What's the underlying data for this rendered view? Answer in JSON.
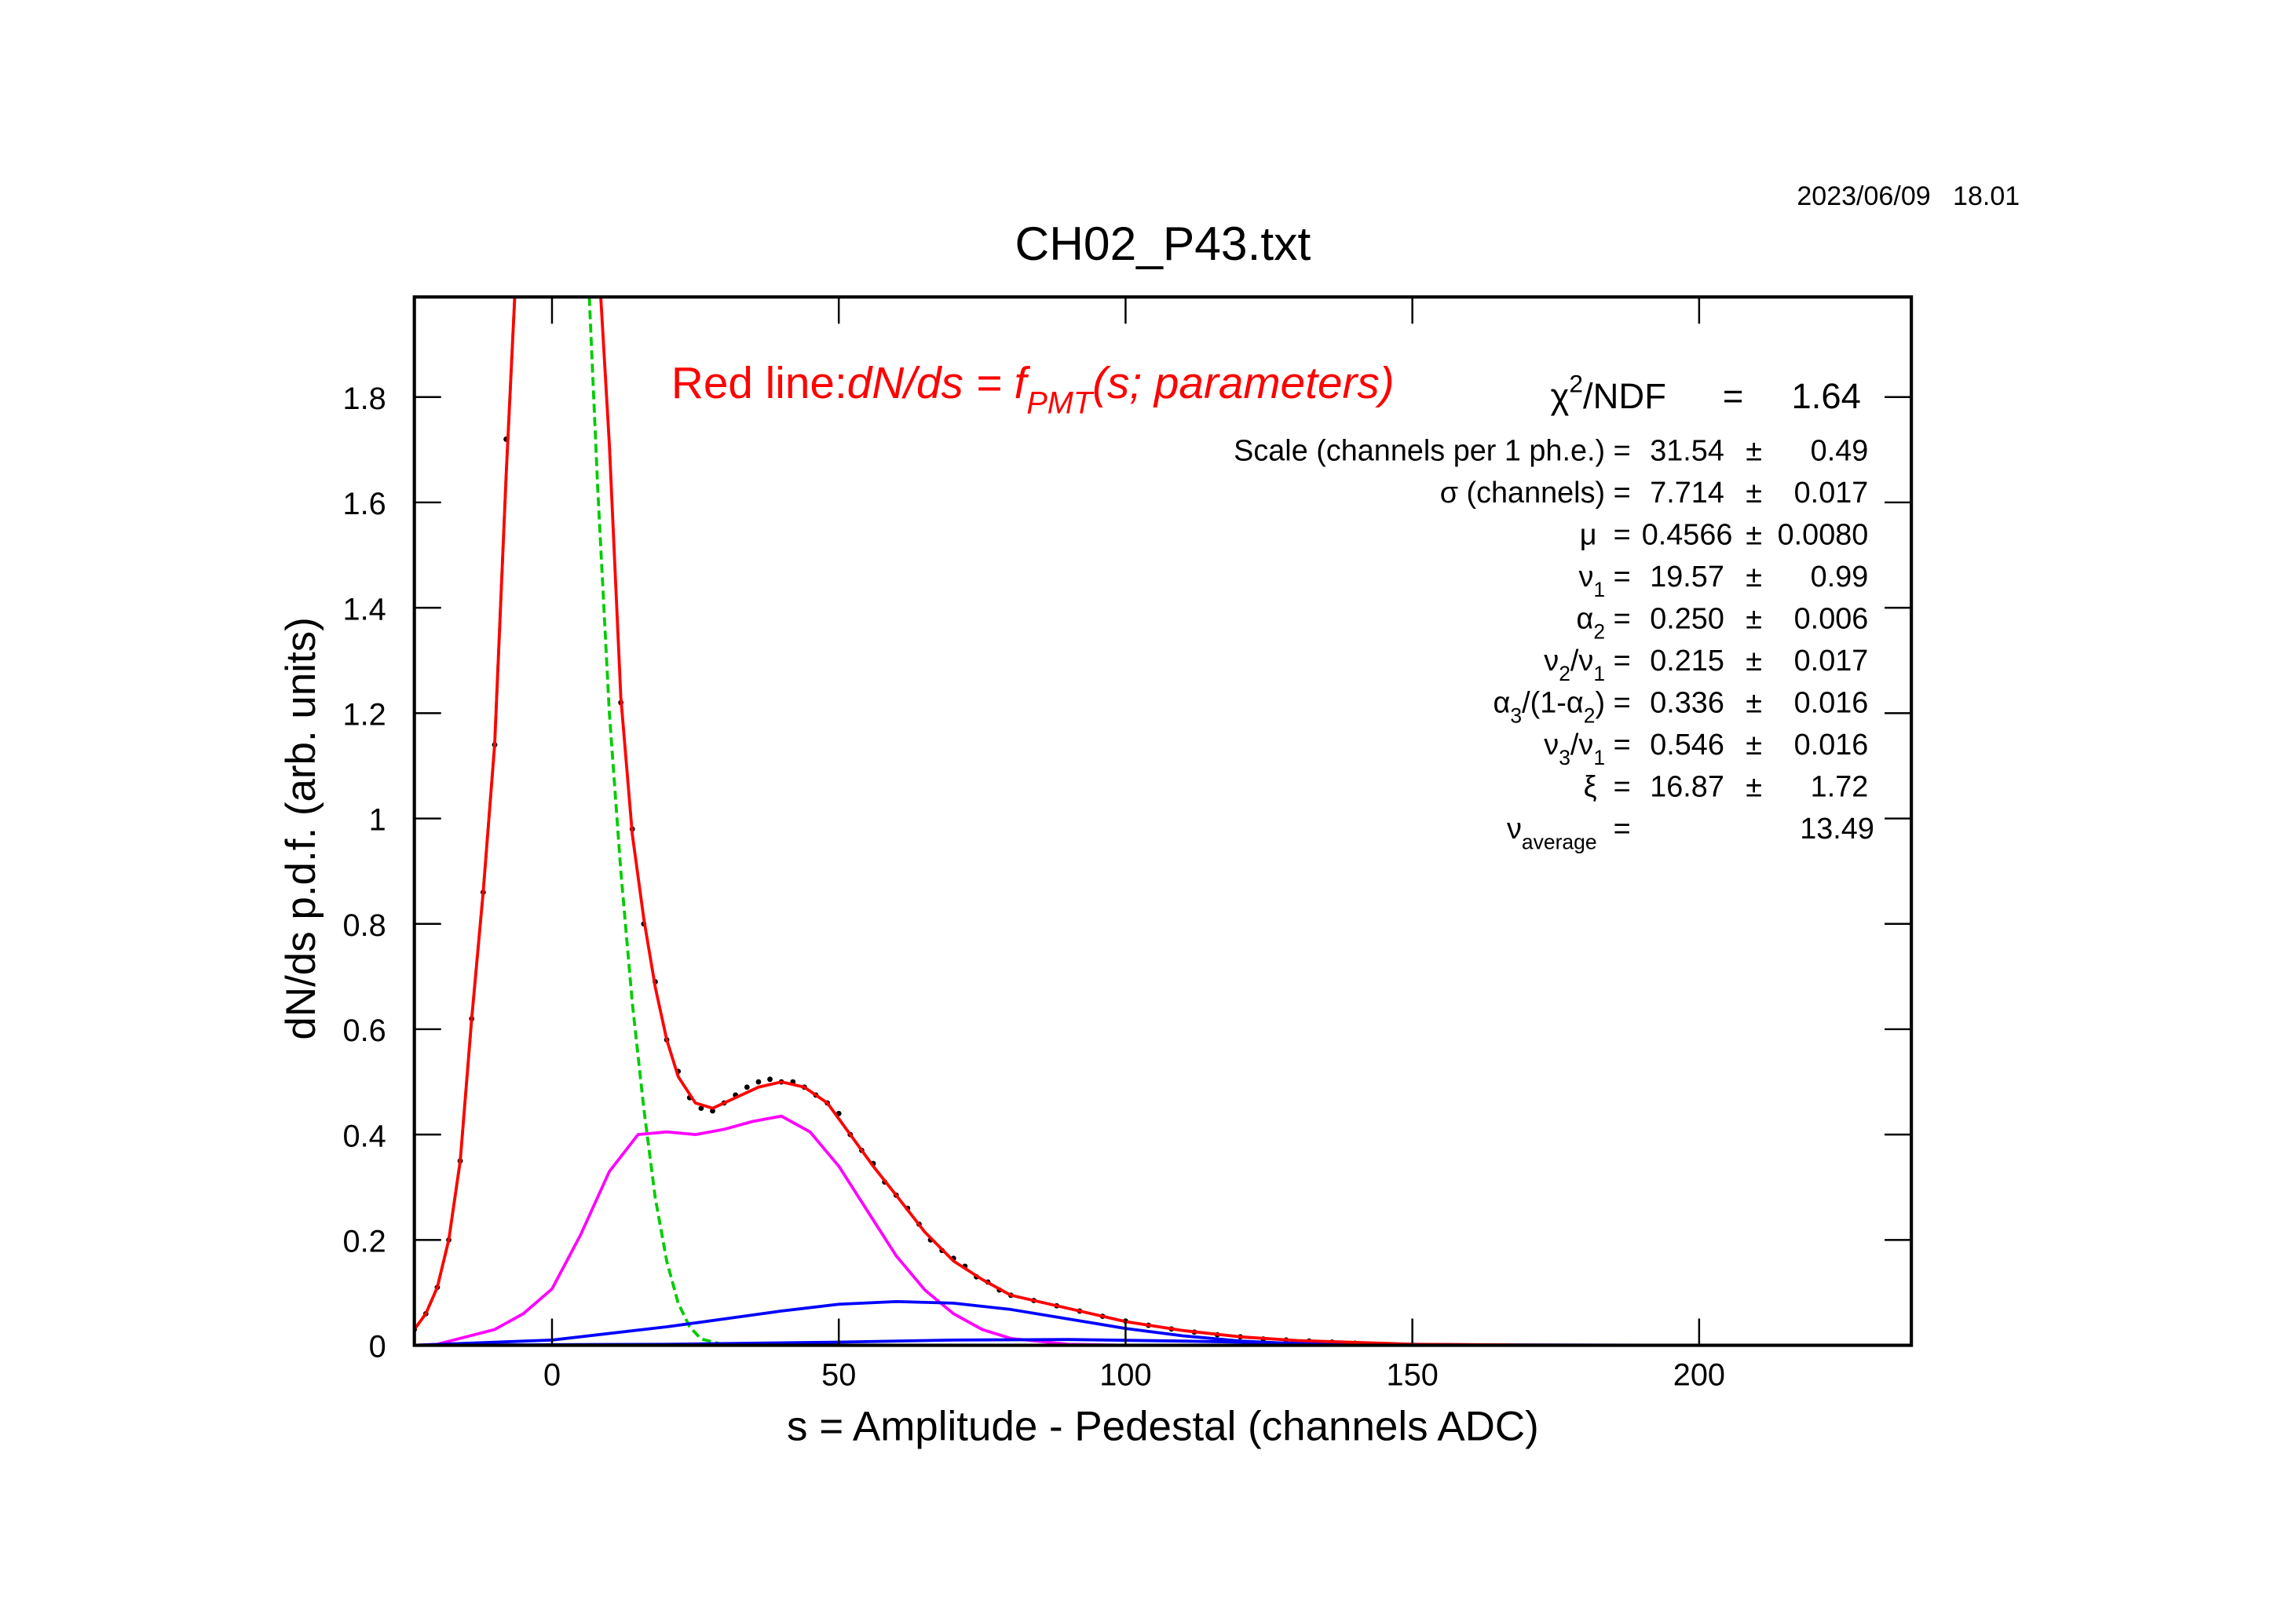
{
  "date": "2023/06/09   18.01",
  "chart_data": {
    "type": "line",
    "title": "CH02_P43.txt",
    "xlabel": "s = Amplitude - Pedestal (channels ADC)",
    "ylabel": "dN/ds p.d.f. (arb. units)",
    "xlim": [
      -24,
      237
    ],
    "ylim": [
      0,
      1.99
    ],
    "xticks": [
      0,
      50,
      100,
      150,
      200
    ],
    "yticks": [
      0,
      0.2,
      0.4,
      0.6,
      0.8,
      1,
      1.2,
      1.4,
      1.6,
      1.8
    ],
    "series": [
      {
        "mark": "dots",
        "color": "#000000",
        "x": [
          -24,
          -22,
          -20,
          -18,
          -16,
          -14,
          -12,
          -10,
          -8,
          12,
          14,
          16,
          18,
          20,
          22,
          24,
          26,
          28,
          30,
          32,
          34,
          36,
          38,
          40,
          42,
          44,
          46,
          48,
          50,
          52,
          54,
          56,
          58,
          60,
          62,
          64,
          66,
          68,
          70,
          72,
          74,
          76,
          78,
          80,
          84,
          88,
          92,
          96,
          100,
          104,
          108,
          112,
          116,
          120,
          124,
          128,
          132,
          136,
          140
        ],
        "values": [
          0.03,
          0.06,
          0.11,
          0.2,
          0.35,
          0.62,
          0.86,
          1.14,
          1.72,
          1.22,
          0.98,
          0.8,
          0.69,
          0.58,
          0.52,
          0.47,
          0.45,
          0.445,
          0.46,
          0.475,
          0.49,
          0.5,
          0.505,
          0.5,
          0.5,
          0.49,
          0.475,
          0.46,
          0.44,
          0.4,
          0.37,
          0.345,
          0.31,
          0.285,
          0.26,
          0.23,
          0.2,
          0.18,
          0.165,
          0.15,
          0.13,
          0.12,
          0.105,
          0.095,
          0.085,
          0.075,
          0.065,
          0.055,
          0.046,
          0.038,
          0.031,
          0.025,
          0.02,
          0.016,
          0.012,
          0.01,
          0.008,
          0.006,
          0.004
        ]
      },
      {
        "mark": "line",
        "color": "#00cc00",
        "dashed": true,
        "x": [
          -24,
          -22,
          -20,
          -18,
          -16,
          -14,
          -12,
          -10,
          -8,
          -6.5,
          0,
          6.5,
          8,
          10,
          12,
          14,
          16,
          18,
          20,
          22,
          24,
          26,
          30,
          40,
          237
        ],
        "values": [
          0.03,
          0.06,
          0.11,
          0.2,
          0.35,
          0.62,
          0.86,
          1.14,
          1.65,
          1.99,
          null,
          1.99,
          1.62,
          1.2,
          0.9,
          0.65,
          0.45,
          0.28,
          0.16,
          0.08,
          0.035,
          0.012,
          0.001,
          0,
          0
        ]
      },
      {
        "mark": "line",
        "color": "#ff00ff",
        "x": [
          -24,
          -20,
          -10,
          -5,
          0,
          5,
          10,
          15,
          20,
          25,
          30,
          35,
          40,
          45,
          50,
          55,
          60,
          65,
          70,
          75,
          80,
          90,
          100,
          237
        ],
        "values": [
          0,
          0.002,
          0.03,
          0.06,
          0.107,
          0.21,
          0.33,
          0.4,
          0.405,
          0.4,
          0.41,
          0.425,
          0.435,
          0.405,
          0.34,
          0.255,
          0.17,
          0.105,
          0.06,
          0.03,
          0.013,
          0.002,
          0,
          0
        ]
      },
      {
        "mark": "line",
        "color": "#0000ff",
        "x": [
          -24,
          0,
          20,
          30,
          40,
          50,
          60,
          70,
          80,
          90,
          100,
          110,
          120,
          130,
          150,
          237
        ],
        "values": [
          0,
          0.01,
          0.035,
          0.05,
          0.065,
          0.078,
          0.083,
          0.08,
          0.068,
          0.05,
          0.032,
          0.018,
          0.008,
          0.003,
          0,
          0
        ]
      },
      {
        "mark": "line",
        "color": "#0000ff",
        "x": [
          -24,
          20,
          50,
          70,
          90,
          110,
          130,
          160,
          200,
          237
        ],
        "values": [
          0,
          0.002,
          0.006,
          0.01,
          0.011,
          0.008,
          0.004,
          0.001,
          0,
          0
        ]
      },
      {
        "mark": "line",
        "color": "#ff0000",
        "x": [
          -24,
          -22,
          -20,
          -18,
          -16,
          -14,
          -12,
          -10,
          -8,
          -6.5,
          0,
          8.5,
          10,
          12,
          14,
          16,
          18,
          20,
          22,
          25,
          28,
          32,
          36,
          40,
          44,
          48,
          52,
          56,
          60,
          65,
          70,
          75,
          80,
          90,
          100,
          110,
          120,
          130,
          150,
          170,
          200,
          237
        ],
        "values": [
          0.03,
          0.06,
          0.11,
          0.2,
          0.35,
          0.62,
          0.86,
          1.14,
          1.65,
          1.99,
          null,
          1.99,
          1.71,
          1.23,
          0.97,
          0.81,
          0.68,
          0.58,
          0.51,
          0.46,
          0.45,
          0.47,
          0.49,
          0.5,
          0.49,
          0.46,
          0.4,
          0.34,
          0.285,
          0.215,
          0.16,
          0.125,
          0.095,
          0.07,
          0.045,
          0.028,
          0.016,
          0.009,
          0.002,
          0.0005,
          0,
          0
        ]
      }
    ],
    "annotation": [
      {
        "t": "Red line:"
      },
      {
        "i": "dN/ds = f"
      },
      {
        "isub": "PMT"
      },
      {
        "i": "(s; parameters)"
      }
    ],
    "chi2": {
      "label": [
        {
          "t": "χ"
        },
        {
          "sup": "2"
        },
        {
          "t": "/NDF"
        }
      ],
      "equals": "=",
      "value": "1.64"
    },
    "plus_minus": "±",
    "fit_results": [
      {
        "label": [
          {
            "t": "Scale (channels per 1 ph.e.) ="
          }
        ],
        "value": "31.54",
        "error": "0.49"
      },
      {
        "label": [
          {
            "t": "σ (channels) ="
          }
        ],
        "value": "7.714",
        "error": "0.017"
      },
      {
        "label": [
          {
            "t": "μ  ="
          }
        ],
        "value": "0.4566",
        "error": "0.0080"
      },
      {
        "label": [
          {
            "t": "ν"
          },
          {
            "sub": "1"
          },
          {
            "t": " ="
          }
        ],
        "value": "19.57",
        "error": "0.99"
      },
      {
        "label": [
          {
            "t": "α"
          },
          {
            "sub": "2"
          },
          {
            "t": " ="
          }
        ],
        "value": "0.250",
        "error": "0.006"
      },
      {
        "label": [
          {
            "t": "ν"
          },
          {
            "sub": "2"
          },
          {
            "t": "/ν"
          },
          {
            "sub": "1"
          },
          {
            "t": " ="
          }
        ],
        "value": "0.215",
        "error": "0.017"
      },
      {
        "label": [
          {
            "t": "α"
          },
          {
            "sub": "3"
          },
          {
            "t": "/(1-α"
          },
          {
            "sub": "2"
          },
          {
            "t": ") ="
          }
        ],
        "value": "0.336",
        "error": "0.016"
      },
      {
        "label": [
          {
            "t": "ν"
          },
          {
            "sub": "3"
          },
          {
            "t": "/ν"
          },
          {
            "sub": "1"
          },
          {
            "t": " ="
          }
        ],
        "value": "0.546",
        "error": "0.016"
      },
      {
        "label": [
          {
            "t": "ξ  ="
          }
        ],
        "value": "16.87",
        "error": "1.72"
      },
      {
        "label": [
          {
            "t": "ν"
          },
          {
            "sub": "average"
          },
          {
            "t": "  ="
          }
        ],
        "value": "13.49"
      }
    ]
  }
}
